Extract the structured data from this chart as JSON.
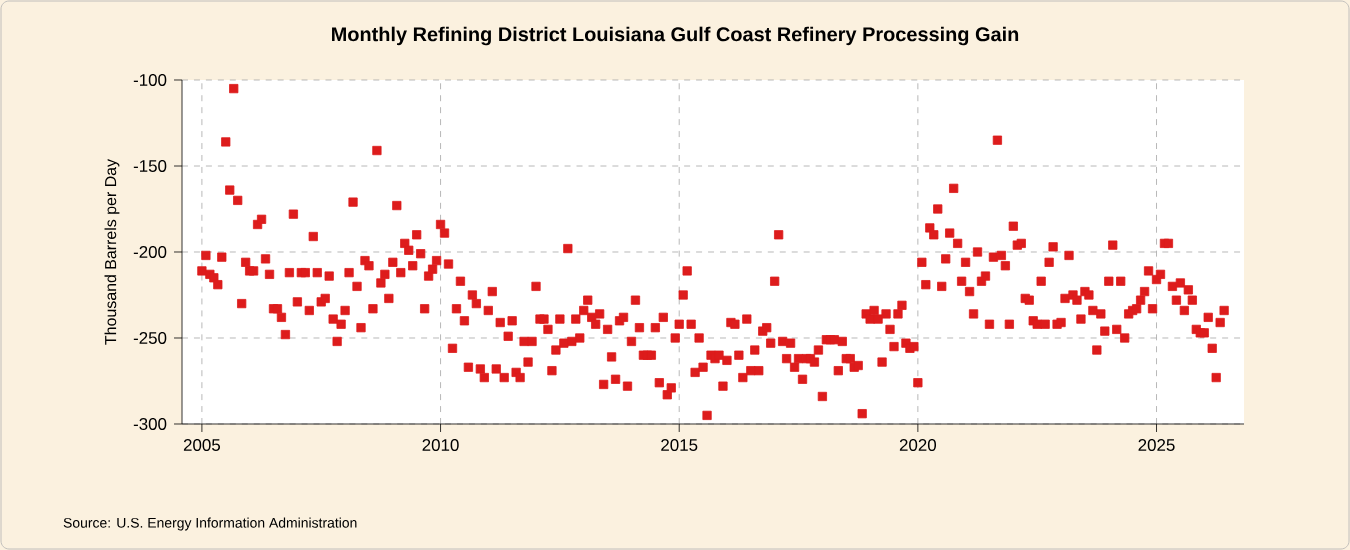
{
  "chart_data": {
    "type": "scatter",
    "title": "Monthly Refining District Louisiana Gulf Coast Refinery Processing Gain",
    "ylabel": "Thousand Barrels per Day",
    "annotations": [
      "Source: U.S. Energy Information Administration"
    ],
    "color": "#dd1c1c",
    "marker": "square",
    "grid": true,
    "xlim": [
      "2004-08",
      "2026-11"
    ],
    "xticks": [
      "2005",
      "2010",
      "2015",
      "2020",
      "2025"
    ],
    "ylim": [
      -300,
      -100
    ],
    "yticks": [
      -300,
      -250,
      -200,
      -150,
      -100
    ],
    "x": [
      "2005-01",
      "2005-02",
      "2005-03",
      "2005-04",
      "2005-05",
      "2005-06",
      "2005-07",
      "2005-08",
      "2005-09",
      "2005-10",
      "2005-11",
      "2005-12",
      "2006-01",
      "2006-02",
      "2006-03",
      "2006-04",
      "2006-05",
      "2006-06",
      "2006-07",
      "2006-08",
      "2006-09",
      "2006-10",
      "2006-11",
      "2006-12",
      "2007-01",
      "2007-02",
      "2007-03",
      "2007-04",
      "2007-05",
      "2007-06",
      "2007-07",
      "2007-08",
      "2007-09",
      "2007-10",
      "2007-11",
      "2007-12",
      "2008-01",
      "2008-02",
      "2008-03",
      "2008-04",
      "2008-05",
      "2008-06",
      "2008-07",
      "2008-08",
      "2008-09",
      "2008-10",
      "2008-11",
      "2008-12",
      "2009-01",
      "2009-02",
      "2009-03",
      "2009-04",
      "2009-05",
      "2009-06",
      "2009-07",
      "2009-08",
      "2009-09",
      "2009-10",
      "2009-11",
      "2009-12",
      "2010-01",
      "2010-02",
      "2010-03",
      "2010-04",
      "2010-05",
      "2010-06",
      "2010-07",
      "2010-08",
      "2010-09",
      "2010-10",
      "2010-11",
      "2010-12",
      "2011-01",
      "2011-02",
      "2011-03",
      "2011-04",
      "2011-05",
      "2011-06",
      "2011-07",
      "2011-08",
      "2011-09",
      "2011-10",
      "2011-11",
      "2011-12",
      "2012-01",
      "2012-02",
      "2012-03",
      "2012-04",
      "2012-05",
      "2012-06",
      "2012-07",
      "2012-08",
      "2012-09",
      "2012-10",
      "2012-11",
      "2012-12",
      "2013-01",
      "2013-02",
      "2013-03",
      "2013-04",
      "2013-05",
      "2013-06",
      "2013-07",
      "2013-08",
      "2013-09",
      "2013-10",
      "2013-11",
      "2013-12",
      "2014-01",
      "2014-02",
      "2014-03",
      "2014-04",
      "2014-05",
      "2014-06",
      "2014-07",
      "2014-08",
      "2014-09",
      "2014-10",
      "2014-11",
      "2014-12",
      "2015-01",
      "2015-02",
      "2015-03",
      "2015-04",
      "2015-05",
      "2015-06",
      "2015-07",
      "2015-08",
      "2015-09",
      "2015-10",
      "2015-11",
      "2015-12",
      "2016-01",
      "2016-02",
      "2016-03",
      "2016-04",
      "2016-05",
      "2016-06",
      "2016-07",
      "2016-08",
      "2016-09",
      "2016-10",
      "2016-11",
      "2016-12",
      "2017-01",
      "2017-02",
      "2017-03",
      "2017-04",
      "2017-05",
      "2017-06",
      "2017-07",
      "2017-08",
      "2017-09",
      "2017-10",
      "2017-11",
      "2017-12",
      "2018-01",
      "2018-02",
      "2018-03",
      "2018-04",
      "2018-05",
      "2018-06",
      "2018-07",
      "2018-08",
      "2018-09",
      "2018-10",
      "2018-11",
      "2018-12",
      "2019-01",
      "2019-02",
      "2019-03",
      "2019-04",
      "2019-05",
      "2019-06",
      "2019-07",
      "2019-08",
      "2019-09",
      "2019-10",
      "2019-11",
      "2019-12",
      "2020-01",
      "2020-02",
      "2020-03",
      "2020-04",
      "2020-05",
      "2020-06",
      "2020-07",
      "2020-08",
      "2020-09",
      "2020-10",
      "2020-11",
      "2020-12",
      "2021-01",
      "2021-02",
      "2021-03",
      "2021-04",
      "2021-05",
      "2021-06",
      "2021-07",
      "2021-08",
      "2021-09",
      "2021-10",
      "2021-11",
      "2021-12",
      "2022-01",
      "2022-02",
      "2022-03",
      "2022-04",
      "2022-05",
      "2022-06",
      "2022-07",
      "2022-08",
      "2022-09",
      "2022-10",
      "2022-11",
      "2022-12",
      "2023-01",
      "2023-02",
      "2023-03",
      "2023-04",
      "2023-05",
      "2023-06",
      "2023-07",
      "2023-08",
      "2023-09",
      "2023-10",
      "2023-11",
      "2023-12",
      "2024-01",
      "2024-02",
      "2024-03",
      "2024-04",
      "2024-05",
      "2024-06",
      "2024-07",
      "2024-08",
      "2024-09",
      "2024-10",
      "2024-11",
      "2024-12",
      "2025-01",
      "2025-02",
      "2025-03",
      "2025-04",
      "2025-05",
      "2025-06",
      "2025-07",
      "2025-08",
      "2025-09",
      "2025-10",
      "2025-11",
      "2025-12",
      "2026-01",
      "2026-02",
      "2026-03",
      "2026-04",
      "2026-05",
      "2026-06"
    ],
    "values": [
      -211,
      -202,
      -213,
      -215,
      -219,
      -203,
      -136,
      -164,
      -105,
      -170,
      -230,
      -206,
      -211,
      -211,
      -184,
      -181,
      -204,
      -213,
      -233,
      -233,
      -238,
      -248,
      -212,
      -178,
      -229,
      -212,
      -212,
      -234,
      -191,
      -212,
      -229,
      -227,
      -214,
      -239,
      -252,
      -242,
      -234,
      -212,
      -171,
      -220,
      -244,
      -205,
      -208,
      -233,
      -141,
      -218,
      -213,
      -227,
      -206,
      -173,
      -212,
      -195,
      -199,
      -208,
      -190,
      -201,
      -233,
      -214,
      -210,
      -205,
      -184,
      -189,
      -207,
      -256,
      -233,
      -217,
      -240,
      -267,
      -225,
      -230,
      -268,
      -273,
      -234,
      -223,
      -268,
      -241,
      -273,
      -249,
      -240,
      -270,
      -273,
      -252,
      -264,
      -252,
      -220,
      -239,
      -239,
      -245,
      -269,
      -257,
      -239,
      -253,
      -198,
      -252,
      -239,
      -250,
      -234,
      -228,
      -238,
      -242,
      -236,
      -277,
      -245,
      -261,
      -274,
      -240,
      -238,
      -278,
      -252,
      -228,
      -244,
      -260,
      -260,
      -260,
      -244,
      -276,
      -238,
      -283,
      -279,
      -250,
      -242,
      -225,
      -211,
      -242,
      -270,
      -250,
      -267,
      -295,
      -260,
      -262,
      -260,
      -278,
      -263,
      -241,
      -242,
      -260,
      -273,
      -239,
      -269,
      -257,
      -269,
      -246,
      -244,
      -253,
      -217,
      -190,
      -252,
      -262,
      -253,
      -267,
      -262,
      -274,
      -262,
      -262,
      -264,
      -257,
      -284,
      -251,
      -251,
      -251,
      -269,
      -252,
      -262,
      -262,
      -267,
      -266,
      -294,
      -236,
      -239,
      -234,
      -239,
      -264,
      -236,
      -245,
      -255,
      -236,
      -231,
      -253,
      -256,
      -255,
      -276,
      -206,
      -219,
      -186,
      -190,
      -175,
      -220,
      -204,
      -189,
      -163,
      -195,
      -217,
      -206,
      -223,
      -236,
      -200,
      -217,
      -214,
      -242,
      -203,
      -135,
      -202,
      -208,
      -242,
      -185,
      -196,
      -195,
      -227,
      -228,
      -240,
      -242,
      -217,
      -242,
      -206,
      -197,
      -242,
      -241,
      -227,
      -202,
      -225,
      -228,
      -239,
      -223,
      -225,
      -234,
      -257,
      -236,
      -246,
      -217,
      -196,
      -245,
      -217,
      -250,
      -236,
      -234,
      -233,
      -228,
      -223,
      -211,
      -233,
      -216,
      -213,
      -195,
      -195,
      -220,
      -228,
      -218,
      -234,
      -222,
      -228,
      -245,
      -247,
      -247,
      -238,
      -256,
      -273,
      -241,
      -234
    ]
  }
}
